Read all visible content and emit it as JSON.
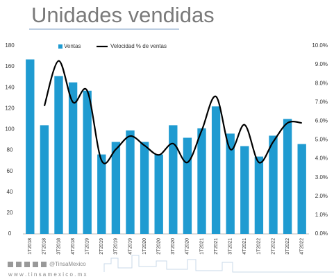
{
  "title": "Unidades vendidas",
  "chart_data": {
    "type": "bar_line",
    "categories": [
      "1T2018",
      "2T2018",
      "3T2018",
      "4T2018",
      "1T2019",
      "2T2019",
      "3T2019",
      "4T2019",
      "1T2020",
      "2T2020",
      "3T2020",
      "4T2020",
      "1T2021",
      "2T2021",
      "3T2021",
      "4T2021",
      "1T2022",
      "2T2022",
      "3T2022",
      "4T2022"
    ],
    "series": [
      {
        "name": "Ventas",
        "type": "bar",
        "color": "#1f9bd1",
        "values": [
          167,
          104,
          151,
          145,
          137,
          76,
          88,
          99,
          88,
          76,
          104,
          92,
          101,
          122,
          96,
          84,
          74,
          94,
          110,
          86
        ]
      },
      {
        "name": "Velocidad % de ventas",
        "type": "line",
        "axis": "y2",
        "color": "#000000",
        "values": [
          null,
          6.8,
          9.2,
          7.0,
          7.6,
          3.9,
          4.5,
          5.2,
          4.7,
          4.2,
          4.8,
          3.8,
          5.5,
          7.3,
          4.5,
          5.8,
          3.8,
          4.9,
          5.9,
          5.9
        ]
      }
    ],
    "ylim": [
      0,
      180
    ],
    "yticks": [
      0,
      20,
      40,
      60,
      80,
      100,
      120,
      140,
      160,
      180
    ],
    "y2lim": [
      0,
      10
    ],
    "y2ticks": [
      {
        "value": 0,
        "label": "0.0%"
      },
      {
        "value": 1,
        "label": "1.0%"
      },
      {
        "value": 2,
        "label": "2.0%"
      },
      {
        "value": 3,
        "label": "3.0%"
      },
      {
        "value": 4,
        "label": "4.0%"
      },
      {
        "value": 5,
        "label": "5.0%"
      },
      {
        "value": 6,
        "label": "6.0%"
      },
      {
        "value": 7,
        "label": "7.0%"
      },
      {
        "value": 8,
        "label": "8.0%"
      },
      {
        "value": 9,
        "label": "9.0%"
      },
      {
        "value": 10,
        "label": "10.0%"
      }
    ],
    "legend": "top"
  },
  "footer": {
    "handle": "@TinsaMexico",
    "url": "w w w . t i n s a m e x i c o . m x"
  }
}
